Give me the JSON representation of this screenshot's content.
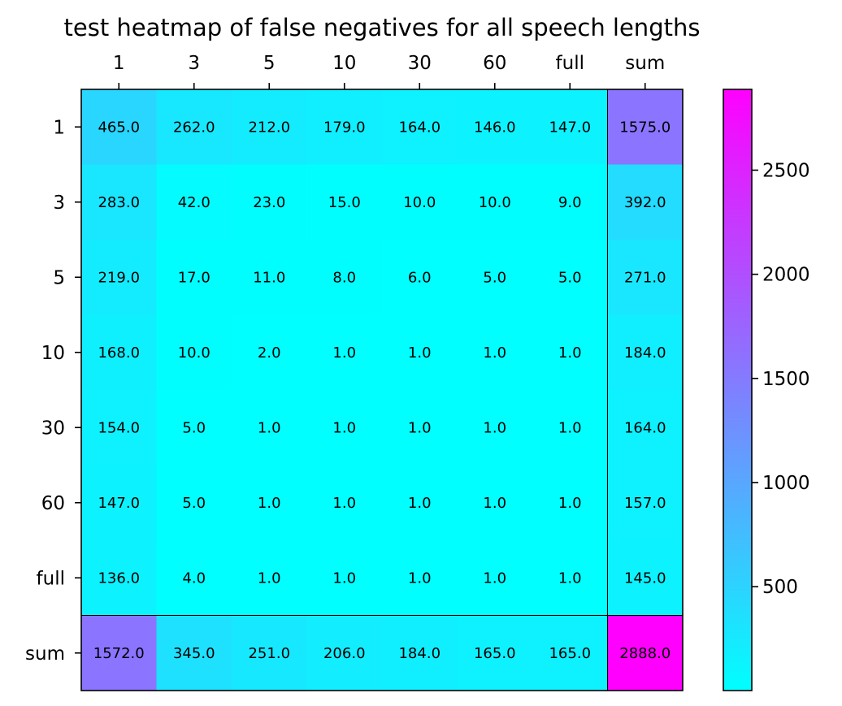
{
  "chart_data": {
    "type": "heatmap",
    "title": "test heatmap of false negatives for all speech lengths",
    "x_categories": [
      "1",
      "3",
      "5",
      "10",
      "30",
      "60",
      "full",
      "sum"
    ],
    "y_categories": [
      "1",
      "3",
      "5",
      "10",
      "30",
      "60",
      "full",
      "sum"
    ],
    "values": [
      [
        465,
        262,
        212,
        179,
        164,
        146,
        147,
        1575
      ],
      [
        283,
        42,
        23,
        15,
        10,
        10,
        9,
        392
      ],
      [
        219,
        17,
        11,
        8,
        6,
        5,
        5,
        271
      ],
      [
        168,
        10,
        2,
        1,
        1,
        1,
        1,
        184
      ],
      [
        154,
        5,
        1,
        1,
        1,
        1,
        1,
        164
      ],
      [
        147,
        5,
        1,
        1,
        1,
        1,
        1,
        157
      ],
      [
        136,
        4,
        1,
        1,
        1,
        1,
        1,
        145
      ],
      [
        1572,
        345,
        251,
        206,
        184,
        165,
        165,
        2888
      ]
    ],
    "cell_labels": [
      [
        "465.0",
        "262.0",
        "212.0",
        "179.0",
        "164.0",
        "146.0",
        "147.0",
        "1575.0"
      ],
      [
        "283.0",
        "42.0",
        "23.0",
        "15.0",
        "10.0",
        "10.0",
        "9.0",
        "392.0"
      ],
      [
        "219.0",
        "17.0",
        "11.0",
        "8.0",
        "6.0",
        "5.0",
        "5.0",
        "271.0"
      ],
      [
        "168.0",
        "10.0",
        "2.0",
        "1.0",
        "1.0",
        "1.0",
        "1.0",
        "184.0"
      ],
      [
        "154.0",
        "5.0",
        "1.0",
        "1.0",
        "1.0",
        "1.0",
        "1.0",
        "164.0"
      ],
      [
        "147.0",
        "5.0",
        "1.0",
        "1.0",
        "1.0",
        "1.0",
        "1.0",
        "157.0"
      ],
      [
        "136.0",
        "4.0",
        "1.0",
        "1.0",
        "1.0",
        "1.0",
        "1.0",
        "145.0"
      ],
      [
        "1572.0",
        "345.0",
        "251.0",
        "206.0",
        "184.0",
        "165.0",
        "165.0",
        "2888.0"
      ]
    ],
    "x_axis_position": "top",
    "colormap": {
      "name": "cool",
      "low": "#00ffff",
      "high": "#ff00ff"
    },
    "color_range": [
      1,
      2888
    ],
    "colorbar": {
      "position": "right",
      "ticks": [
        500,
        1000,
        1500,
        2000,
        2500
      ],
      "tick_labels": [
        "500",
        "1000",
        "1500",
        "2000",
        "2500"
      ]
    },
    "grid": false,
    "separator_lines": "before sum row and sum column"
  }
}
